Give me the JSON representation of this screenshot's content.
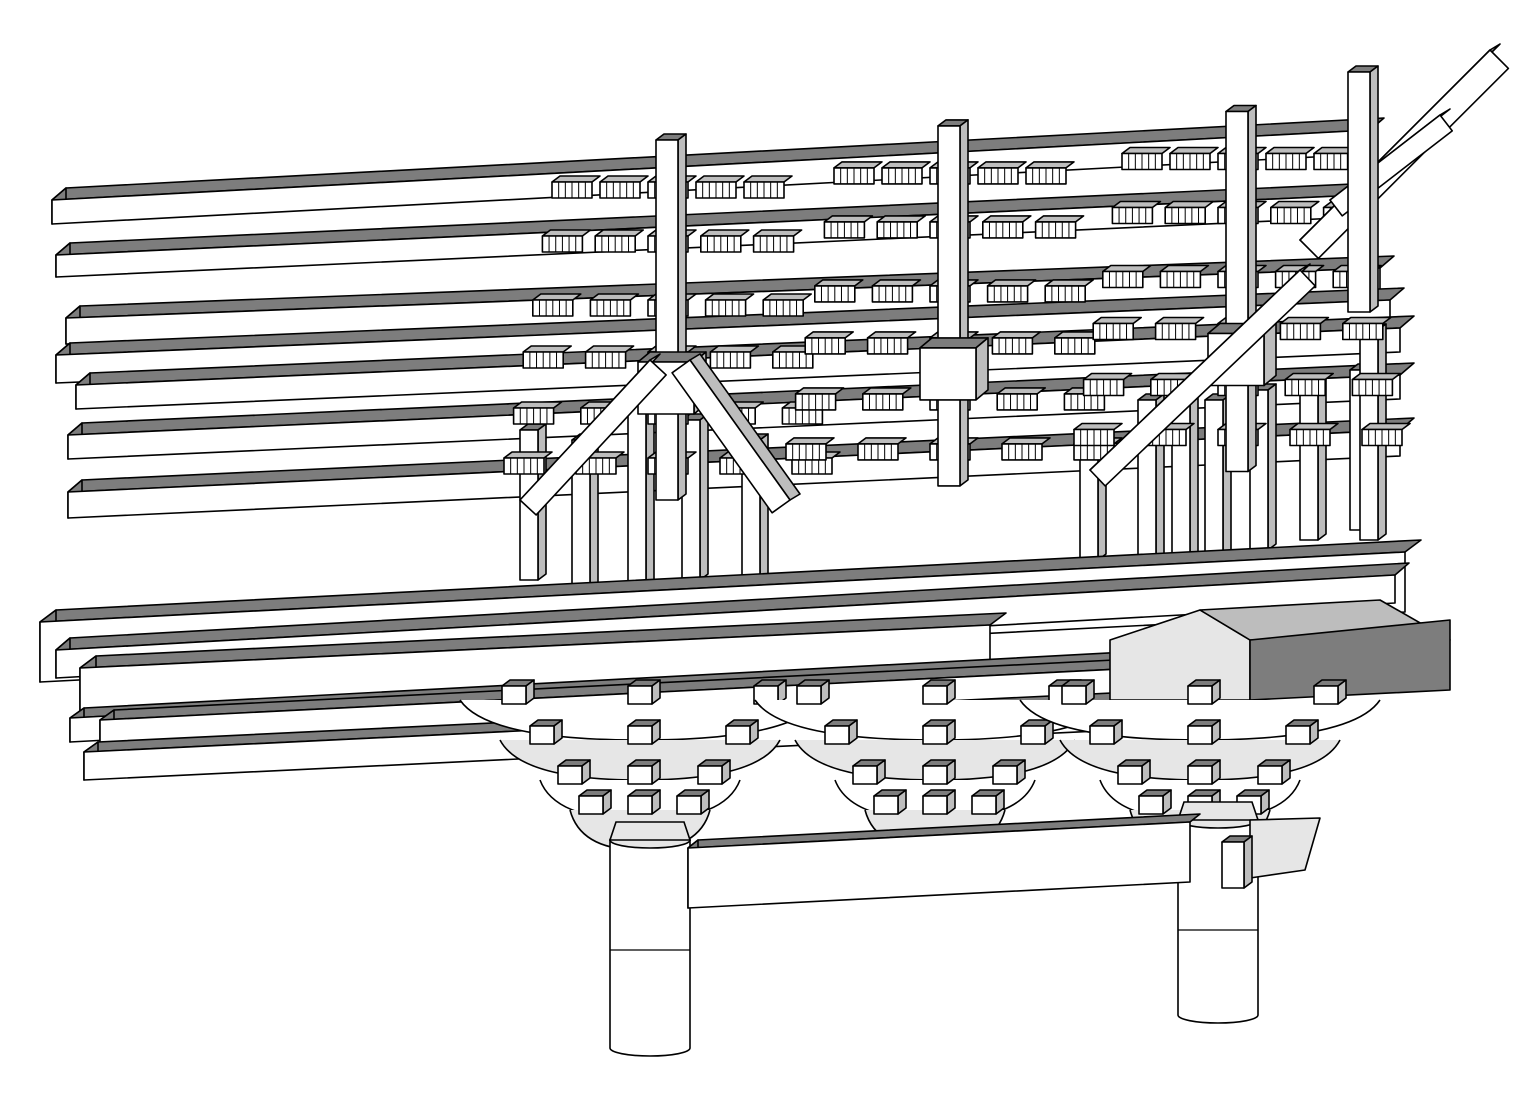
{
  "colors": {
    "background": "#ffffff",
    "line": "#000000",
    "face_light": "#ffffff",
    "face_pale": "#e6e6e6",
    "face_mid": "#bdbdbd",
    "face_dark": "#7d7d7d"
  },
  "structure": {
    "purlin_count": 7,
    "beam_count": 5,
    "bracket_set_count": 3,
    "column_count": 2,
    "diagonal_arm_count": 4
  }
}
